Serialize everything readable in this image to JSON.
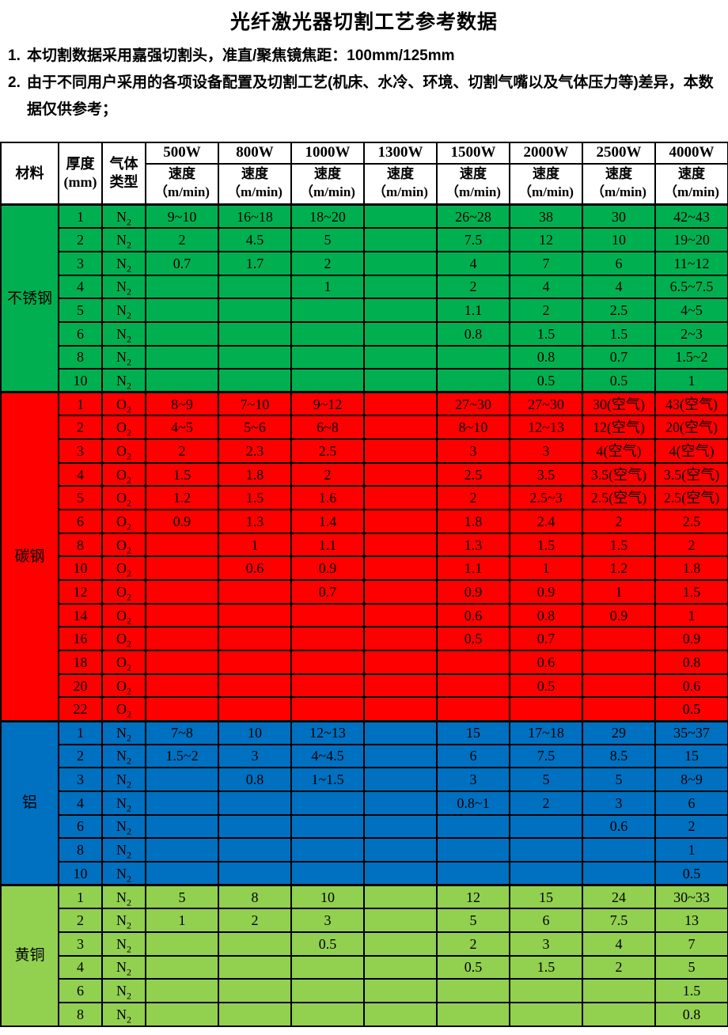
{
  "title": "光纤激光器切割工艺参考数据",
  "notes": [
    {
      "prefix": "1.",
      "text": "本切割数据采用嘉强切割头，准直/聚焦镜焦距：100mm/125mm"
    },
    {
      "prefix": "2.",
      "text": "由于不同用户采用的各项设备配置及切割工艺(机床、水冷、环境、切割气嘴以及气体压力等)差异，本数据仅供参考；"
    }
  ],
  "table": {
    "corner": {
      "material": "材料",
      "thickness": [
        "厚度",
        "(mm)"
      ],
      "gas": [
        "气体",
        "类型"
      ]
    },
    "power_columns": [
      "500W",
      "800W",
      "1000W",
      "1300W",
      "1500W",
      "2000W",
      "2500W",
      "4000W"
    ],
    "speed_label": [
      "速度",
      "（m/min)"
    ],
    "colors": {
      "stainless": "#00B050",
      "carbon": "#FF0000",
      "aluminum": "#0070C0",
      "brass": "#92D050",
      "border": "#000000",
      "header_bg": "#FFFFFF",
      "text": "#000000"
    },
    "sections": [
      {
        "material": "不锈钢",
        "color_key": "stainless",
        "rows": [
          {
            "thickness": "1",
            "gas": "N₂",
            "speeds": [
              "9~10",
              "16~18",
              "18~20",
              "",
              "26~28",
              "38",
              "30",
              "42~43"
            ]
          },
          {
            "thickness": "2",
            "gas": "N₂",
            "speeds": [
              "2",
              "4.5",
              "5",
              "",
              "7.5",
              "12",
              "10",
              "19~20"
            ]
          },
          {
            "thickness": "3",
            "gas": "N₂",
            "speeds": [
              "0.7",
              "1.7",
              "2",
              "",
              "4",
              "7",
              "6",
              "11~12"
            ]
          },
          {
            "thickness": "4",
            "gas": "N₂",
            "speeds": [
              "",
              "",
              "1",
              "",
              "2",
              "4",
              "4",
              "6.5~7.5"
            ]
          },
          {
            "thickness": "5",
            "gas": "N₂",
            "speeds": [
              "",
              "",
              "",
              "",
              "1.1",
              "2",
              "2.5",
              "4~5"
            ]
          },
          {
            "thickness": "6",
            "gas": "N₂",
            "speeds": [
              "",
              "",
              "",
              "",
              "0.8",
              "1.5",
              "1.5",
              "2~3"
            ]
          },
          {
            "thickness": "8",
            "gas": "N₂",
            "speeds": [
              "",
              "",
              "",
              "",
              "",
              "0.8",
              "0.7",
              "1.5~2"
            ]
          },
          {
            "thickness": "10",
            "gas": "N₂",
            "speeds": [
              "",
              "",
              "",
              "",
              "",
              "0.5",
              "0.5",
              "1"
            ]
          }
        ]
      },
      {
        "material": "碳钢",
        "color_key": "carbon",
        "rows": [
          {
            "thickness": "1",
            "gas": "O₂",
            "speeds": [
              "8~9",
              "7~10",
              "9~12",
              "",
              "27~30",
              "27~30",
              "30(空气)",
              "43(空气)"
            ]
          },
          {
            "thickness": "2",
            "gas": "O₂",
            "speeds": [
              "4~5",
              "5~6",
              "6~8",
              "",
              "8~10",
              "12~13",
              "12(空气)",
              "20(空气)"
            ]
          },
          {
            "thickness": "3",
            "gas": "O₂",
            "speeds": [
              "2",
              "2.3",
              "2.5",
              "",
              "3",
              "3",
              "4(空气)",
              "4(空气)"
            ]
          },
          {
            "thickness": "4",
            "gas": "O₂",
            "speeds": [
              "1.5",
              "1.8",
              "2",
              "",
              "2.5",
              "3.5",
              "3.5(空气)",
              "3.5(空气)"
            ]
          },
          {
            "thickness": "5",
            "gas": "O₂",
            "speeds": [
              "1.2",
              "1.5",
              "1.6",
              "",
              "2",
              "2.5~3",
              "2.5(空气)",
              "2.5(空气)"
            ]
          },
          {
            "thickness": "6",
            "gas": "O₂",
            "speeds": [
              "0.9",
              "1.3",
              "1.4",
              "",
              "1.8",
              "2.4",
              "2",
              "2.5"
            ]
          },
          {
            "thickness": "8",
            "gas": "O₂",
            "speeds": [
              "",
              "1",
              "1.1",
              "",
              "1.3",
              "1.5",
              "1.5",
              "2"
            ]
          },
          {
            "thickness": "10",
            "gas": "O₂",
            "speeds": [
              "",
              "0.6",
              "0.9",
              "",
              "1.1",
              "1",
              "1.2",
              "1.8"
            ]
          },
          {
            "thickness": "12",
            "gas": "O₂",
            "speeds": [
              "",
              "",
              "0.7",
              "",
              "0.9",
              "0.9",
              "1",
              "1.5"
            ]
          },
          {
            "thickness": "14",
            "gas": "O₂",
            "speeds": [
              "",
              "",
              "",
              "",
              "0.6",
              "0.8",
              "0.9",
              "1"
            ]
          },
          {
            "thickness": "16",
            "gas": "O₂",
            "speeds": [
              "",
              "",
              "",
              "",
              "0.5",
              "0.7",
              "",
              "0.9"
            ]
          },
          {
            "thickness": "18",
            "gas": "O₂",
            "speeds": [
              "",
              "",
              "",
              "",
              "",
              "0.6",
              "",
              "0.8"
            ]
          },
          {
            "thickness": "20",
            "gas": "O₂",
            "speeds": [
              "",
              "",
              "",
              "",
              "",
              "0.5",
              "",
              "0.6"
            ]
          },
          {
            "thickness": "22",
            "gas": "O₂",
            "speeds": [
              "",
              "",
              "",
              "",
              "",
              "",
              "",
              "0.5"
            ]
          }
        ]
      },
      {
        "material": "铝",
        "color_key": "aluminum",
        "rows": [
          {
            "thickness": "1",
            "gas": "N₂",
            "speeds": [
              "7~8",
              "10",
              "12~13",
              "",
              "15",
              "17~18",
              "29",
              "35~37"
            ]
          },
          {
            "thickness": "2",
            "gas": "N₂",
            "speeds": [
              "1.5~2",
              "3",
              "4~4.5",
              "",
              "6",
              "7.5",
              "8.5",
              "15"
            ]
          },
          {
            "thickness": "3",
            "gas": "N₂",
            "speeds": [
              "",
              "0.8",
              "1~1.5",
              "",
              "3",
              "5",
              "5",
              "8~9"
            ]
          },
          {
            "thickness": "4",
            "gas": "N₂",
            "speeds": [
              "",
              "",
              "",
              "",
              "0.8~1",
              "2",
              "3",
              "6"
            ]
          },
          {
            "thickness": "6",
            "gas": "N₂",
            "speeds": [
              "",
              "",
              "",
              "",
              "",
              "",
              "0.6",
              "2"
            ]
          },
          {
            "thickness": "8",
            "gas": "N₂",
            "speeds": [
              "",
              "",
              "",
              "",
              "",
              "",
              "",
              "1"
            ]
          },
          {
            "thickness": "10",
            "gas": "N₂",
            "speeds": [
              "",
              "",
              "",
              "",
              "",
              "",
              "",
              "0.5"
            ]
          }
        ]
      },
      {
        "material": "黄铜",
        "color_key": "brass",
        "rows": [
          {
            "thickness": "1",
            "gas": "N₂",
            "speeds": [
              "5",
              "8",
              "10",
              "",
              "12",
              "15",
              "24",
              "30~33"
            ]
          },
          {
            "thickness": "2",
            "gas": "N₂",
            "speeds": [
              "1",
              "2",
              "3",
              "",
              "5",
              "6",
              "7.5",
              "13"
            ]
          },
          {
            "thickness": "3",
            "gas": "N₂",
            "speeds": [
              "",
              "",
              "0.5",
              "",
              "2",
              "3",
              "4",
              "7"
            ]
          },
          {
            "thickness": "4",
            "gas": "N₂",
            "speeds": [
              "",
              "",
              "",
              "",
              "0.5",
              "1.5",
              "2",
              "5"
            ]
          },
          {
            "thickness": "6",
            "gas": "N₂",
            "speeds": [
              "",
              "",
              "",
              "",
              "",
              "",
              "",
              "1.5"
            ]
          },
          {
            "thickness": "8",
            "gas": "N₂",
            "speeds": [
              "",
              "",
              "",
              "",
              "",
              "",
              "",
              "0.8"
            ]
          }
        ]
      }
    ]
  }
}
